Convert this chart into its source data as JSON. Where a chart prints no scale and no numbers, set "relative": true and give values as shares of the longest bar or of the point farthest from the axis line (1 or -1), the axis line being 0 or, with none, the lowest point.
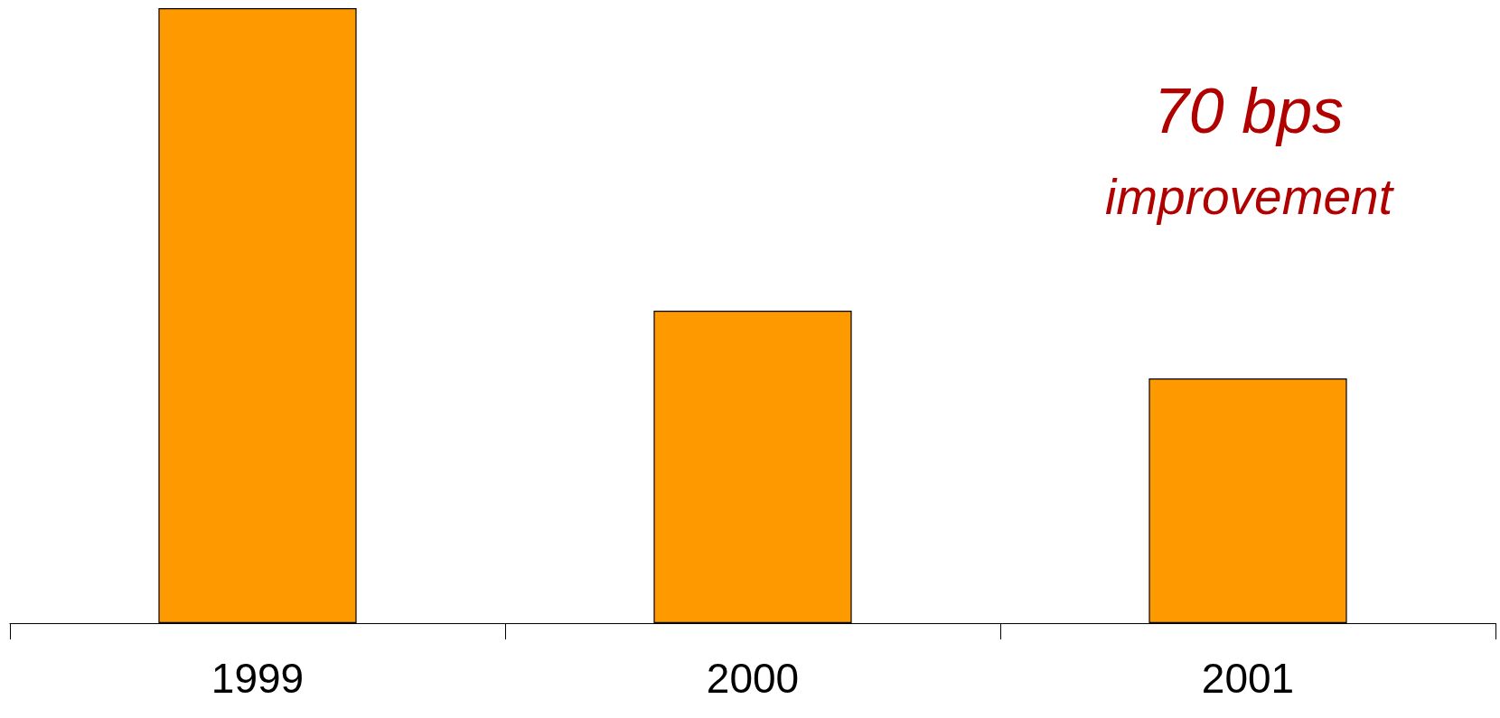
{
  "chart_data": {
    "type": "bar",
    "relative": true,
    "categories": [
      "1999",
      "2000",
      "2001"
    ],
    "values": [
      1,
      0.508,
      0.398
    ],
    "color": "#ff9900",
    "annotations": [
      "70 bps",
      "improvement"
    ]
  }
}
